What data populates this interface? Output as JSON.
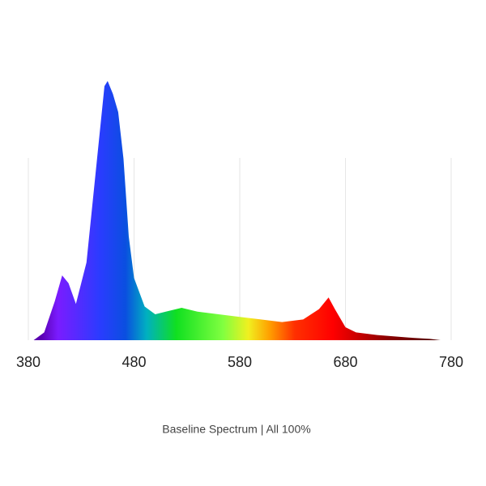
{
  "chart_data": {
    "type": "area",
    "title": "Baseline Spectrum  | All 100%",
    "x": [
      385,
      395,
      405,
      412,
      418,
      425,
      435,
      445,
      452,
      455,
      460,
      465,
      470,
      475,
      480,
      490,
      500,
      510,
      525,
      540,
      560,
      580,
      600,
      620,
      640,
      655,
      664,
      670,
      680,
      690,
      710,
      740,
      760,
      770
    ],
    "values": [
      0,
      3,
      15,
      25,
      22,
      14,
      30,
      70,
      98,
      100,
      95,
      88,
      70,
      40,
      24,
      13,
      10,
      11,
      12.5,
      11,
      10,
      9,
      8,
      7,
      8,
      12,
      16.5,
      12,
      5,
      3,
      2,
      1,
      0.5,
      0
    ],
    "xlim": [
      380,
      780
    ],
    "xticks": [
      380,
      480,
      580,
      680,
      780
    ],
    "ylim": [
      0,
      100
    ],
    "grid": true
  }
}
